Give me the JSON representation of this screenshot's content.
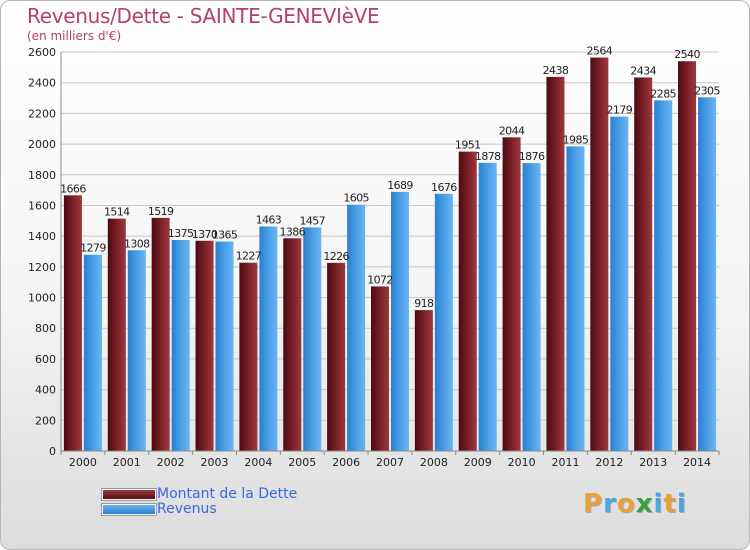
{
  "header": {
    "title": "Revenus/Dette - SAINTE-GENEVIèVE",
    "subtitle": "(en milliers d'€)"
  },
  "logo": {
    "letters": [
      "P",
      "r",
      "o",
      "x",
      "i",
      "t",
      "i"
    ],
    "colors": [
      "#e8a23b",
      "#4aa8e0",
      "#e8a23b",
      "#3aa142",
      "#4aa8e0",
      "#e8a23b",
      "#4aa8e0"
    ]
  },
  "colors": {
    "dette": "#7a1b22",
    "revenus": "#3f94de"
  },
  "chart_data": {
    "type": "bar",
    "title": "Revenus/Dette - SAINTE-GENEVIèVE",
    "subtitle": "(en milliers d'€)",
    "categories": [
      "2000",
      "2001",
      "2002",
      "2003",
      "2004",
      "2005",
      "2006",
      "2007",
      "2008",
      "2009",
      "2010",
      "2011",
      "2012",
      "2013",
      "2014"
    ],
    "series": [
      {
        "name": "Montant de la Dette",
        "values": [
          1666,
          1514,
          1519,
          1370,
          1227,
          1386,
          1226,
          1072,
          918,
          1951,
          2044,
          2438,
          2564,
          2434,
          2540
        ]
      },
      {
        "name": "Revenus",
        "values": [
          1279,
          1308,
          1375,
          1365,
          1463,
          1457,
          1605,
          1689,
          1676,
          1878,
          1876,
          1985,
          2179,
          2285,
          2305
        ]
      }
    ],
    "yticks": [
      0,
      200,
      400,
      600,
      800,
      1000,
      1200,
      1400,
      1600,
      1800,
      2000,
      2200,
      2400,
      2600
    ],
    "ylim": [
      0,
      2600
    ],
    "grid": true,
    "legend_position": "bottom-left"
  }
}
